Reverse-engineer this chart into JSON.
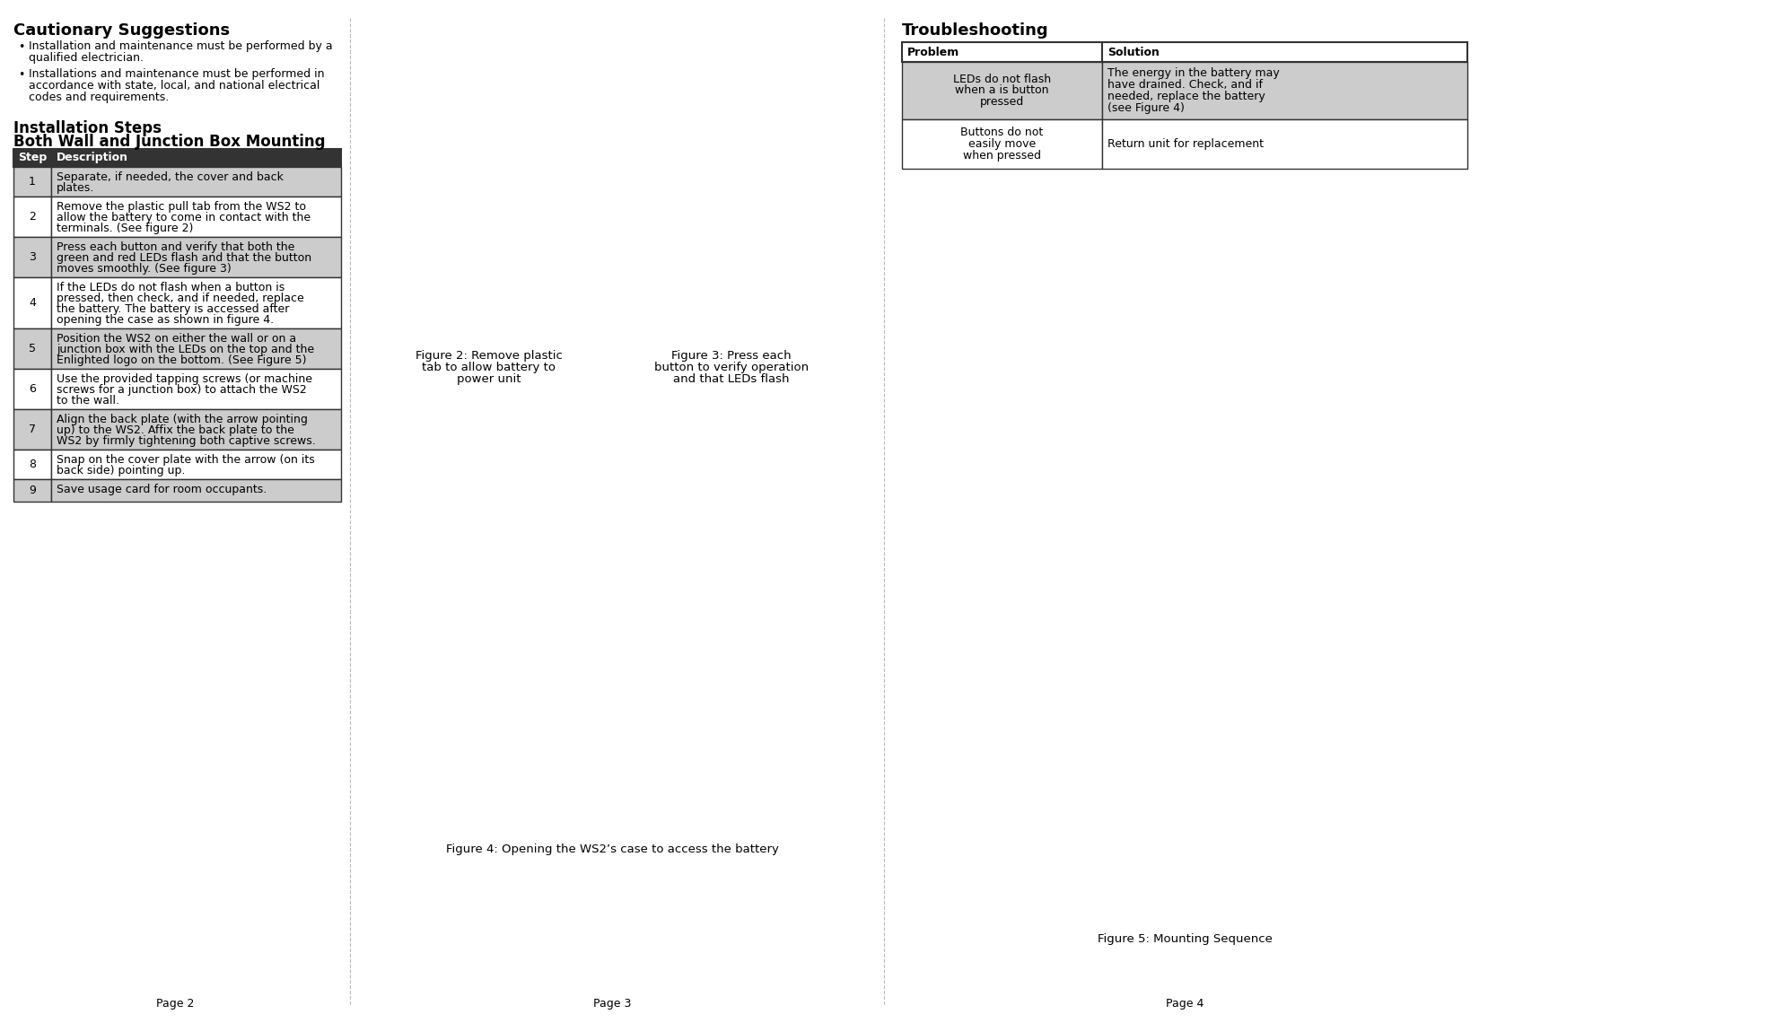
{
  "bg_color": "#ffffff",
  "page_numbers": [
    "Page 2",
    "Page 3",
    "Page 4"
  ],
  "col1": {
    "cautionary_title": "Cautionary Suggestions",
    "bullets": [
      "Installation and maintenance must be performed by a\nqualified electrician.",
      "Installations and maintenance must be performed in\naccordance with state, local, and national electrical\ncodes and requirements."
    ],
    "install_title1": "Installation Steps",
    "install_title2": "Both Wall and Junction Box Mounting",
    "table_header": [
      "Step",
      "Description"
    ],
    "table_rows": [
      [
        "1",
        "Separate, if needed, the cover and back\nplates."
      ],
      [
        "2",
        "Remove the plastic pull tab from the WS2 to\nallow the battery to come in contact with the\nterminals. (See figure 2)"
      ],
      [
        "3",
        "Press each button and verify that both the\ngreen and red LEDs flash and that the button\nmoves smoothly. (See figure 3)"
      ],
      [
        "4",
        "If the LEDs do not flash when a button is\npressed, then check, and if needed, replace\nthe battery. The battery is accessed after\nopening the case as shown in figure 4."
      ],
      [
        "5",
        "Position the WS2 on either the wall or on a\njunction box with the LEDs on the top and the\nEnlighted logo on the bottom. (See Figure 5)"
      ],
      [
        "6",
        "Use the provided tapping screws (or machine\nscrews for a junction box) to attach the WS2\nto the wall."
      ],
      [
        "7",
        "Align the back plate (with the arrow pointing\nup) to the WS2. Affix the back plate to the\nWS2 by firmly tightening both captive screws."
      ],
      [
        "8",
        "Snap on the cover plate with the arrow (on its\nback side) pointing up."
      ],
      [
        "9",
        "Save usage card for room occupants."
      ]
    ],
    "row_shading": [
      true,
      false,
      true,
      false,
      true,
      false,
      true,
      false,
      true
    ]
  },
  "col2": {
    "fig2_caption": "Figure 2: Remove plastic\ntab to allow battery to\npower unit",
    "fig3_caption": "Figure 3: Press each\nbutton to verify operation\nand that LEDs flash",
    "fig4_caption": "Figure 4: Opening the WS2’s case to access the battery"
  },
  "col3": {
    "troubleshoot_title": "Troubleshooting",
    "ts_header": [
      "Problem",
      "Solution"
    ],
    "ts_rows": [
      [
        "LEDs do not flash\nwhen a is button\npressed",
        "The energy in the battery may\nhave drained. Check, and if\nneeded, replace the battery\n(see Figure 4)"
      ],
      [
        "Buttons do not\neasily move\nwhen pressed",
        "Return unit for replacement"
      ]
    ],
    "ts_shading": [
      true,
      false
    ],
    "fig5_caption": "Figure 5: Mounting Sequence"
  },
  "divider_color": "#bbbbbb",
  "table_border_color": "#333333",
  "header_bg": "#333333",
  "header_fg": "#ffffff",
  "shading_color": "#cccccc",
  "white": "#ffffff",
  "text_color": "#000000",
  "font_size_title": 13,
  "font_size_sub": 12,
  "font_size_body": 9,
  "font_size_caption": 9.5,
  "font_size_page": 9
}
